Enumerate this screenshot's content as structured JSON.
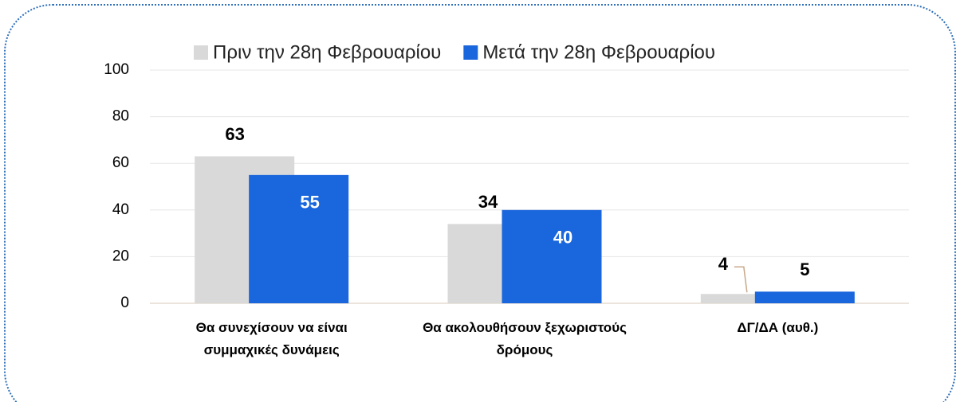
{
  "chart_data": {
    "type": "bar",
    "categories": [
      "Θα συνεχίσουν να είναι συμμαχικές δυνάμεις",
      "Θα ακολουθήσουν ξεχωριστούς δρόμους",
      "ΔΓ/ΔΑ (αυθ.)"
    ],
    "series": [
      {
        "name": "Πριν την 28η Φεβρουαρίου",
        "color": "#d9d9d9",
        "values": [
          63,
          34,
          4
        ]
      },
      {
        "name": "Μετά την 28η Φεβρουαρίου",
        "color": "#1a66dc",
        "values": [
          55,
          40,
          5
        ]
      }
    ],
    "ylim": [
      0,
      100
    ],
    "yticks": [
      0,
      20,
      40,
      60,
      80,
      100
    ],
    "grid": true,
    "legend": "top"
  }
}
